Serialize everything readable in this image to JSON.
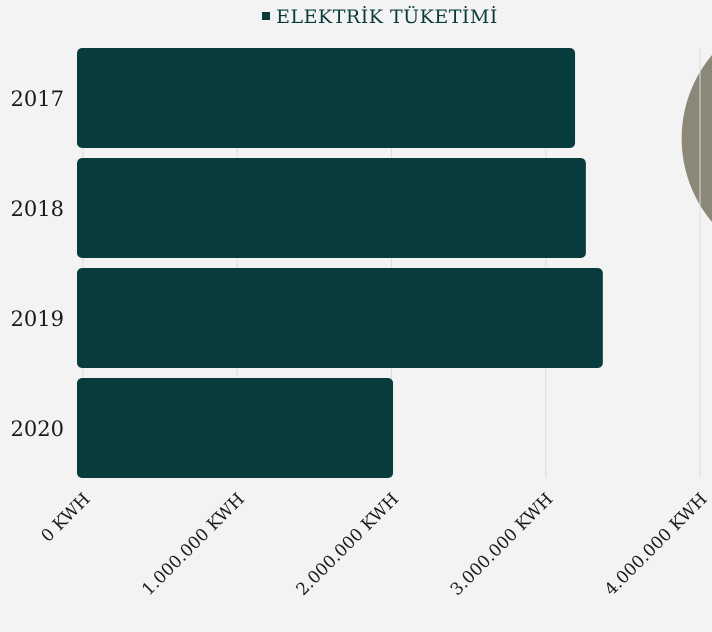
{
  "chart_data": {
    "type": "bar",
    "orientation": "horizontal",
    "categories": [
      "2017",
      "2018",
      "2019",
      "2020"
    ],
    "series": [
      {
        "name": "ELEKTRİK TÜKETİMİ",
        "values": [
          3190000,
          3260000,
          3370000,
          2010000
        ]
      }
    ],
    "x_ticks": [
      "0 KWH",
      "1.000.000 KWH",
      "2.000.000 KWH",
      "3.000.000 KWH",
      "4.000.000 KWH"
    ],
    "xlim": [
      0,
      4000000
    ],
    "grid": true,
    "legend_position": "top",
    "bar_color": "#083b3b",
    "decoration_color": "#8b8878"
  }
}
